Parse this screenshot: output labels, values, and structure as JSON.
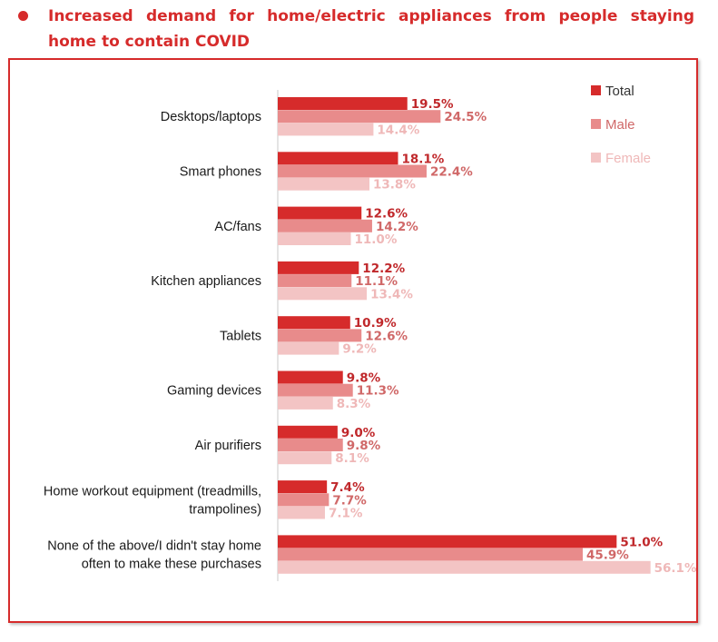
{
  "header": {
    "title": "Increased demand for home/electric appliances from people staying home to contain COVID"
  },
  "chart_data": {
    "type": "bar",
    "orientation": "horizontal",
    "title": "Increased demand for home/electric appliances from people staying home to contain COVID",
    "categories": [
      [
        "Desktops/laptops"
      ],
      [
        "Smart phones"
      ],
      [
        "AC/fans"
      ],
      [
        "Kitchen appliances"
      ],
      [
        "Tablets"
      ],
      [
        "Gaming devices"
      ],
      [
        "Air purifiers"
      ],
      [
        "Home workout equipment (treadmills,",
        "trampolines)"
      ],
      [
        "None of the above/I didn't stay home",
        "often to make these purchases"
      ]
    ],
    "series": [
      {
        "name": "Total",
        "color": "#d62b2b",
        "values": [
          19.5,
          18.1,
          12.6,
          12.2,
          10.9,
          9.8,
          9.0,
          7.4,
          51.0
        ],
        "labels": [
          "19.5%",
          "18.1%",
          "12.6%",
          "12.2%",
          "10.9%",
          "9.8%",
          "9.0%",
          "7.4%",
          "51.0%"
        ]
      },
      {
        "name": "Male",
        "color": "#e88b8b",
        "values": [
          24.5,
          22.4,
          14.2,
          11.1,
          12.6,
          11.3,
          9.8,
          7.7,
          45.9
        ],
        "labels": [
          "24.5%",
          "22.4%",
          "14.2%",
          "11.1%",
          "12.6%",
          "11.3%",
          "9.8%",
          "7.7%",
          "45.9%"
        ]
      },
      {
        "name": "Female",
        "color": "#f3c4c4",
        "values": [
          14.4,
          13.8,
          11.0,
          13.4,
          9.2,
          8.3,
          8.1,
          7.1,
          56.1
        ],
        "labels": [
          "14.4%",
          "13.8%",
          "11.0%",
          "13.4%",
          "9.2%",
          "8.3%",
          "8.1%",
          "7.1%",
          "56.1%"
        ]
      }
    ],
    "xlim": [
      0,
      60
    ],
    "xlabel": "",
    "ylabel": "",
    "grid": false,
    "legend": "top-right",
    "label_colors": [
      "#c0282b",
      "#d06868",
      "#efb8b8"
    ],
    "category_color": "#1a1a1a",
    "axis_color": "#c8c8c8"
  }
}
